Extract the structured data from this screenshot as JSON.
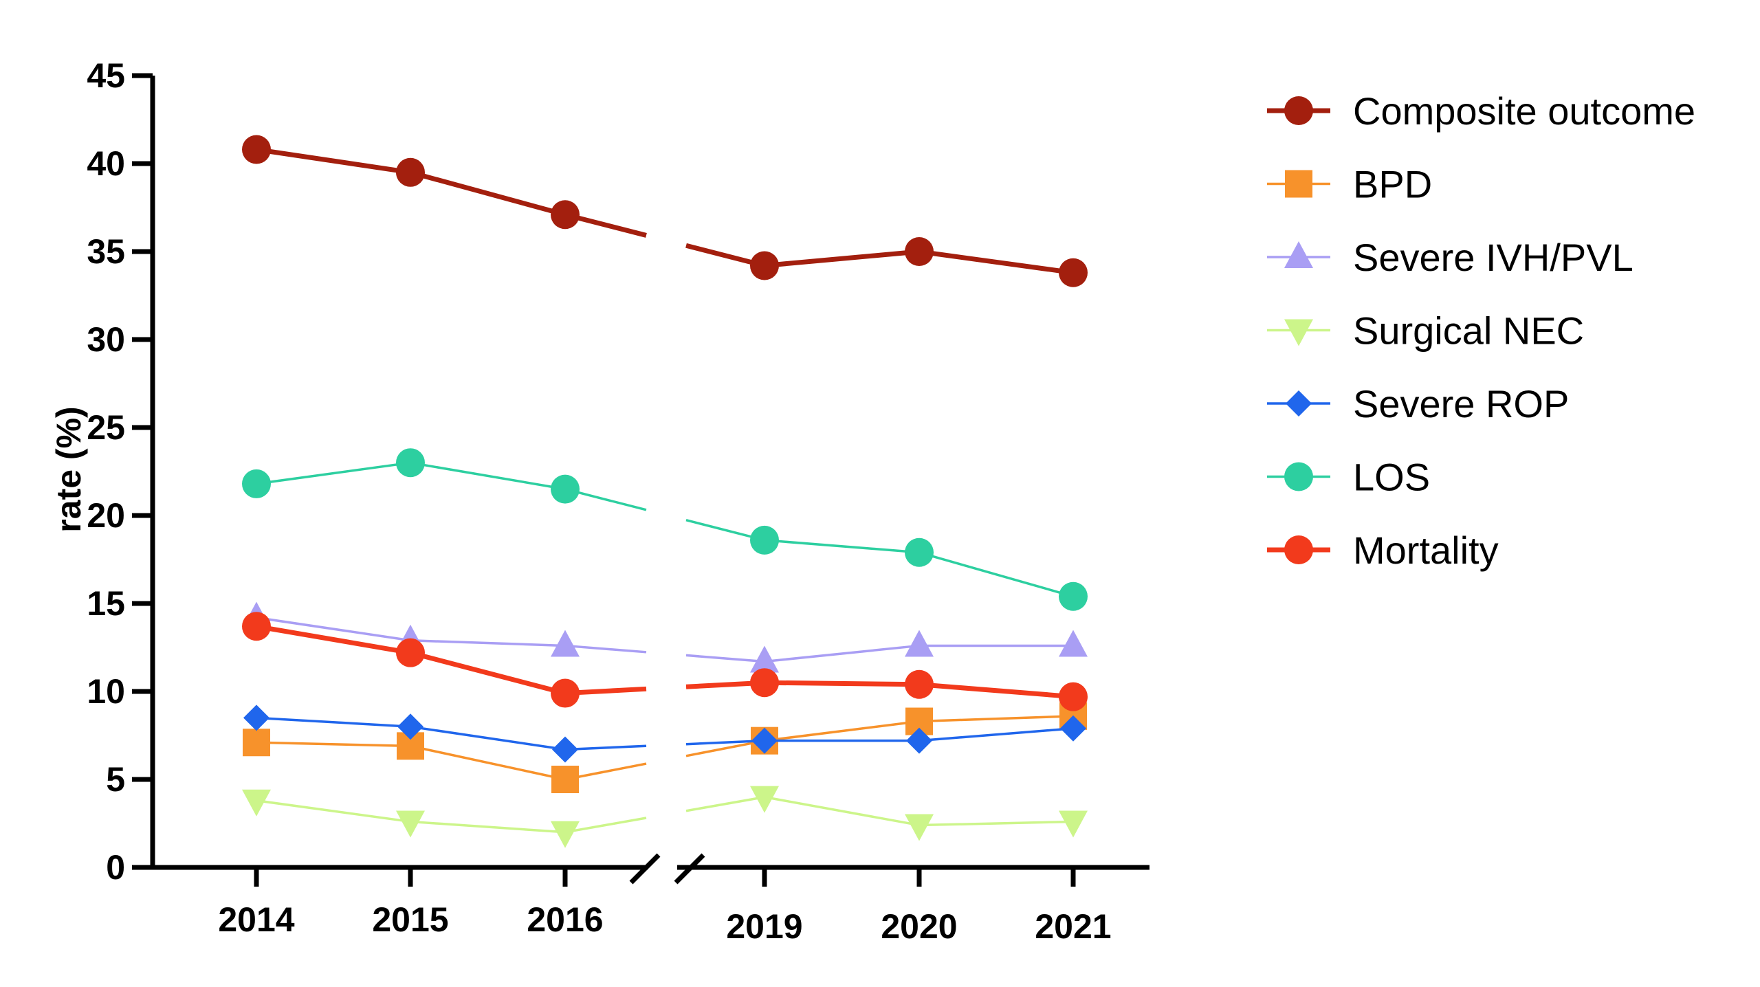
{
  "chart_data": {
    "type": "line",
    "title": "",
    "xlabel": "",
    "ylabel": "rate (%)",
    "x": [
      "2014",
      "2015",
      "2016",
      "2019",
      "2020",
      "2021"
    ],
    "axis_break_between": [
      "2016",
      "2019"
    ],
    "yticks": [
      0,
      5,
      10,
      15,
      20,
      25,
      30,
      35,
      40,
      45
    ],
    "ylim": [
      0,
      45
    ],
    "grid": false,
    "legend_position": "right",
    "series": [
      {
        "name": "Composite outcome",
        "color": "#A31F0E",
        "marker": "circle",
        "line": "thick",
        "values": [
          40.8,
          39.5,
          37.1,
          34.2,
          35.0,
          33.8
        ]
      },
      {
        "name": "BPD",
        "color": "#F7922B",
        "marker": "square",
        "line": "thin",
        "values": [
          7.1,
          6.9,
          5.0,
          7.2,
          8.3,
          8.6
        ]
      },
      {
        "name": "Severe IVH/PVL",
        "color": "#A99EF4",
        "marker": "triangle-up",
        "line": "thin",
        "values": [
          14.2,
          12.9,
          12.6,
          11.7,
          12.6,
          12.6
        ]
      },
      {
        "name": "Surgical NEC",
        "color": "#CCF58A",
        "marker": "triangle-down",
        "line": "thin",
        "values": [
          3.8,
          2.6,
          2.0,
          4.0,
          2.4,
          2.6
        ]
      },
      {
        "name": "Severe ROP",
        "color": "#2066EC",
        "marker": "diamond",
        "line": "thin",
        "values": [
          8.5,
          8.0,
          6.7,
          7.2,
          7.2,
          7.9
        ]
      },
      {
        "name": "LOS",
        "color": "#2DCFA0",
        "marker": "circle",
        "line": "thin",
        "values": [
          21.8,
          23.0,
          21.5,
          18.6,
          17.9,
          15.4
        ]
      },
      {
        "name": "Mortality",
        "color": "#F23A1C",
        "marker": "circle",
        "line": "thick",
        "values": [
          13.7,
          12.2,
          9.9,
          10.5,
          10.4,
          9.7
        ]
      }
    ]
  }
}
